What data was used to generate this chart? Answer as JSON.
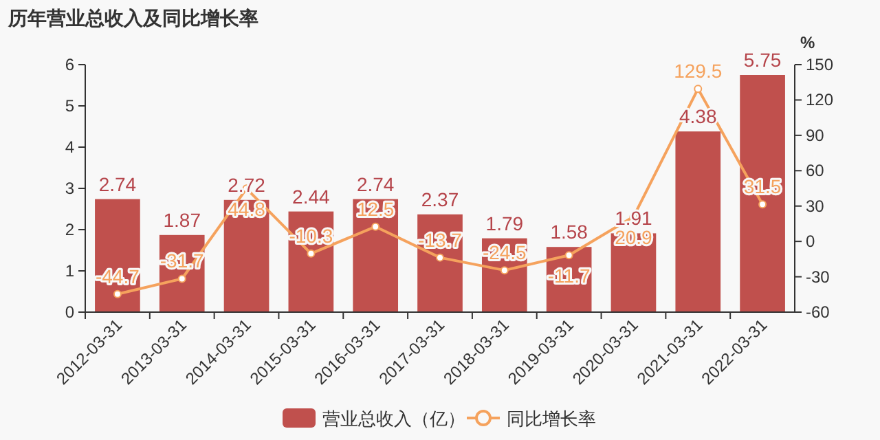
{
  "chart_data": {
    "type": "bar",
    "title": "历年营业总收入及同比增长率",
    "y2label": "%",
    "categories": [
      "2012-03-31",
      "2013-03-31",
      "2014-03-31",
      "2015-03-31",
      "2016-03-31",
      "2017-03-31",
      "2018-03-31",
      "2019-03-31",
      "2020-03-31",
      "2021-03-31",
      "2022-03-31"
    ],
    "series": [
      {
        "name": "营业总收入（亿）",
        "color": "#c0504d",
        "values": [
          2.74,
          1.87,
          2.72,
          2.44,
          2.74,
          2.37,
          1.79,
          1.58,
          1.91,
          4.38,
          5.75
        ]
      },
      {
        "name": "同比增长率",
        "type": "line",
        "axis": "y2",
        "color": "#f5a25d",
        "values": [
          -44.7,
          -31.7,
          44.8,
          -10.3,
          12.5,
          -13.7,
          -24.5,
          -11.7,
          20.9,
          129.5,
          31.5
        ]
      }
    ],
    "ylim": [
      0,
      6
    ],
    "yticks": [
      0,
      1,
      2,
      3,
      4,
      5,
      6
    ],
    "y2lim": [
      -60,
      150
    ],
    "y2ticks": [
      -60,
      -30,
      0,
      30,
      60,
      90,
      120,
      150
    ],
    "data_labels": true,
    "grid": false,
    "legend": "bottom",
    "marker": "circle",
    "line_style": "solid"
  }
}
